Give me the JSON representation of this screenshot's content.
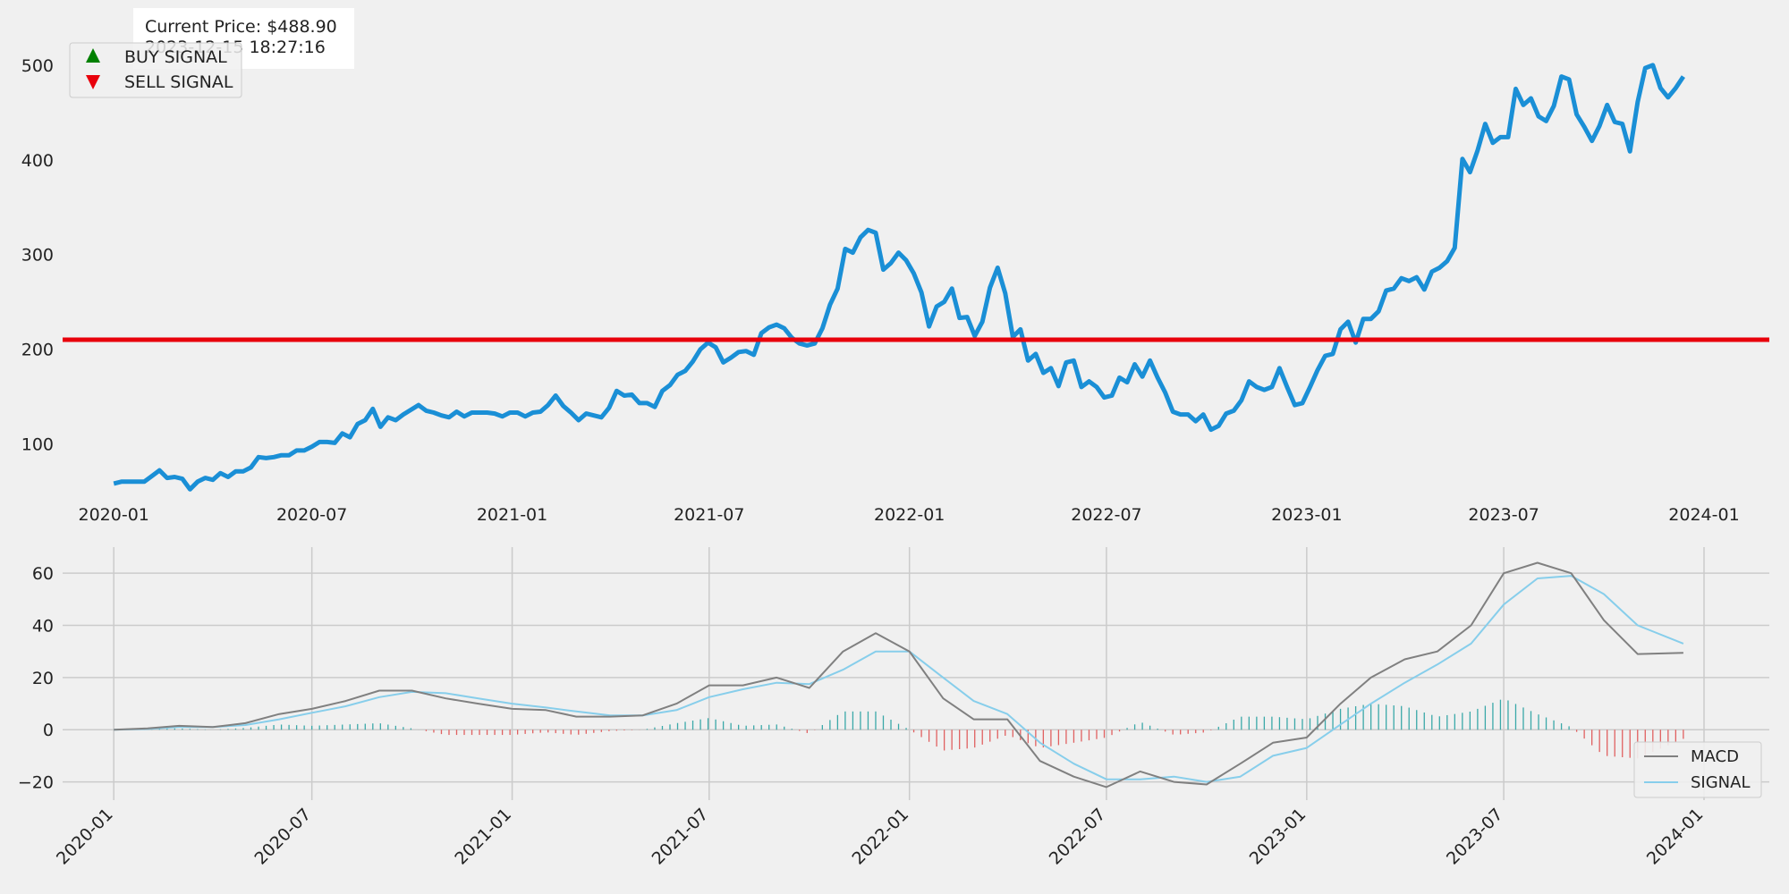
{
  "info_box": {
    "price_text": "Current Price: $488.90",
    "timestamp_text": "2023-12-15 18:27:16"
  },
  "chart_data": [
    {
      "type": "line",
      "panel": "price",
      "series": [
        {
          "name": "",
          "color": "#1a8fd6",
          "x": [
            "2020-01-01",
            "2020-01-08",
            "2020-01-15",
            "2020-01-22",
            "2020-01-29",
            "2020-02-05",
            "2020-02-12",
            "2020-02-19",
            "2020-02-26",
            "2020-03-04",
            "2020-03-11",
            "2020-03-18",
            "2020-03-25",
            "2020-04-01",
            "2020-04-08",
            "2020-04-15",
            "2020-04-22",
            "2020-04-29",
            "2020-05-06",
            "2020-05-13",
            "2020-05-20",
            "2020-05-27",
            "2020-06-03",
            "2020-06-10",
            "2020-06-17",
            "2020-06-24",
            "2020-07-01",
            "2020-07-08",
            "2020-07-15",
            "2020-07-22",
            "2020-07-29",
            "2020-08-05",
            "2020-08-12",
            "2020-08-19",
            "2020-08-26",
            "2020-09-02",
            "2020-09-09",
            "2020-09-16",
            "2020-09-23",
            "2020-09-30",
            "2020-10-07",
            "2020-10-14",
            "2020-10-21",
            "2020-10-28",
            "2020-11-04",
            "2020-11-11",
            "2020-11-18",
            "2020-11-25",
            "2020-12-02",
            "2020-12-09",
            "2020-12-16",
            "2020-12-23",
            "2020-12-30",
            "2021-01-06",
            "2021-01-13",
            "2021-01-20",
            "2021-01-27",
            "2021-02-03",
            "2021-02-10",
            "2021-02-17",
            "2021-02-24",
            "2021-03-03",
            "2021-03-10",
            "2021-03-17",
            "2021-03-24",
            "2021-03-31",
            "2021-04-07",
            "2021-04-14",
            "2021-04-21",
            "2021-04-28",
            "2021-05-05",
            "2021-05-12",
            "2021-05-19",
            "2021-05-26",
            "2021-06-02",
            "2021-06-09",
            "2021-06-16",
            "2021-06-23",
            "2021-06-30",
            "2021-07-07",
            "2021-07-14",
            "2021-07-21",
            "2021-07-28",
            "2021-08-04",
            "2021-08-11",
            "2021-08-18",
            "2021-08-25",
            "2021-09-01",
            "2021-09-08",
            "2021-09-15",
            "2021-09-22",
            "2021-09-29",
            "2021-10-06",
            "2021-10-13",
            "2021-10-20",
            "2021-10-27",
            "2021-11-03",
            "2021-11-10",
            "2021-11-17",
            "2021-11-24",
            "2021-12-01",
            "2021-12-08",
            "2021-12-15",
            "2021-12-22",
            "2021-12-29",
            "2022-01-05",
            "2022-01-12",
            "2022-01-19",
            "2022-01-26",
            "2022-02-02",
            "2022-02-09",
            "2022-02-16",
            "2022-02-23",
            "2022-03-02",
            "2022-03-09",
            "2022-03-16",
            "2022-03-23",
            "2022-03-30",
            "2022-04-06",
            "2022-04-13",
            "2022-04-20",
            "2022-04-27",
            "2022-05-04",
            "2022-05-11",
            "2022-05-18",
            "2022-05-25",
            "2022-06-01",
            "2022-06-08",
            "2022-06-15",
            "2022-06-22",
            "2022-06-29",
            "2022-07-06",
            "2022-07-13",
            "2022-07-20",
            "2022-07-27",
            "2022-08-03",
            "2022-08-10",
            "2022-08-17",
            "2022-08-24",
            "2022-08-31",
            "2022-09-07",
            "2022-09-14",
            "2022-09-21",
            "2022-09-28",
            "2022-10-05",
            "2022-10-12",
            "2022-10-19",
            "2022-10-26",
            "2022-11-02",
            "2022-11-09",
            "2022-11-16",
            "2022-11-23",
            "2022-11-30",
            "2022-12-07",
            "2022-12-14",
            "2022-12-21",
            "2022-12-28",
            "2023-01-04",
            "2023-01-11",
            "2023-01-18",
            "2023-01-25",
            "2023-02-01",
            "2023-02-08",
            "2023-02-15",
            "2023-02-22",
            "2023-03-01",
            "2023-03-08",
            "2023-03-15",
            "2023-03-22",
            "2023-03-29",
            "2023-04-05",
            "2023-04-12",
            "2023-04-19",
            "2023-04-26",
            "2023-05-03",
            "2023-05-10",
            "2023-05-17",
            "2023-05-24",
            "2023-05-31",
            "2023-06-07",
            "2023-06-14",
            "2023-06-21",
            "2023-06-28",
            "2023-07-05",
            "2023-07-12",
            "2023-07-19",
            "2023-07-26",
            "2023-08-02",
            "2023-08-09",
            "2023-08-16",
            "2023-08-23",
            "2023-08-30",
            "2023-09-06",
            "2023-09-13",
            "2023-09-20",
            "2023-09-27",
            "2023-10-04",
            "2023-10-11",
            "2023-10-18",
            "2023-10-25",
            "2023-11-01",
            "2023-11-08",
            "2023-11-15",
            "2023-11-22",
            "2023-11-29",
            "2023-12-06",
            "2023-12-13"
          ],
          "y": [
            58,
            60,
            60,
            60,
            60,
            66,
            72,
            64,
            65,
            63,
            52,
            60,
            64,
            62,
            69,
            65,
            71,
            71,
            75,
            86,
            85,
            86,
            88,
            88,
            93,
            93,
            97,
            102,
            102,
            101,
            111,
            107,
            121,
            125,
            137,
            118,
            128,
            125,
            131,
            136,
            141,
            135,
            133,
            130,
            128,
            134,
            129,
            133,
            133,
            133,
            132,
            129,
            133,
            133,
            129,
            133,
            134,
            141,
            151,
            140,
            133,
            125,
            132,
            130,
            128,
            138,
            156,
            151,
            152,
            143,
            143,
            139,
            156,
            162,
            173,
            177,
            187,
            200,
            207,
            202,
            186,
            191,
            197,
            198,
            194,
            217,
            223,
            226,
            222,
            212,
            206,
            204,
            206,
            222,
            247,
            264,
            306,
            302,
            318,
            326,
            323,
            284,
            291,
            302,
            294,
            280,
            260,
            224,
            245,
            250,
            264,
            233,
            234,
            214,
            229,
            265,
            286,
            259,
            213,
            221,
            188,
            195,
            175,
            180,
            161,
            186,
            188,
            160,
            166,
            160,
            149,
            151,
            170,
            165,
            184,
            171,
            188,
            170,
            154,
            134,
            131,
            131,
            124,
            131,
            115,
            119,
            132,
            135,
            146,
            166,
            160,
            157,
            160,
            180,
            160,
            141,
            143,
            160,
            178,
            193,
            195,
            221,
            229,
            207,
            232,
            232,
            240,
            262,
            264,
            275,
            272,
            276,
            263,
            282,
            286,
            293,
            307,
            401,
            387,
            410,
            438,
            418,
            424,
            424,
            475,
            458,
            465,
            446,
            441,
            457,
            488,
            485,
            448,
            435,
            420,
            436,
            458,
            440,
            438,
            409,
            461,
            497,
            500,
            476,
            466,
            476,
            488
          ]
        }
      ],
      "reference_line": {
        "y": 210,
        "color": "#e8000b"
      },
      "x_ticks": [
        "2020-01",
        "2020-07",
        "2021-01",
        "2021-07",
        "2022-01",
        "2022-07",
        "2023-01",
        "2023-07",
        "2024-01"
      ],
      "y_ticks": [
        100,
        200,
        300,
        400,
        500
      ],
      "xlim": [
        "2019-11-15",
        "2024-03-01"
      ],
      "ylim": [
        40,
        550
      ],
      "legend": {
        "placement": "top-left",
        "entries": [
          {
            "label": "BUY SIGNAL",
            "marker": "triangle-up",
            "color": "#008000"
          },
          {
            "label": "SELL SIGNAL",
            "marker": "triangle-down",
            "color": "#e8000b"
          }
        ]
      },
      "grid": false
    },
    {
      "type": "line",
      "panel": "macd",
      "series": [
        {
          "name": "MACD",
          "color": "#808080",
          "x": [
            "2020-01-01",
            "2020-02-01",
            "2020-03-01",
            "2020-04-01",
            "2020-05-01",
            "2020-06-01",
            "2020-07-01",
            "2020-08-01",
            "2020-09-01",
            "2020-10-01",
            "2020-11-01",
            "2020-12-01",
            "2021-01-01",
            "2021-02-01",
            "2021-03-01",
            "2021-04-01",
            "2021-05-01",
            "2021-06-01",
            "2021-07-01",
            "2021-08-01",
            "2021-09-01",
            "2021-10-01",
            "2021-11-01",
            "2021-12-01",
            "2022-01-01",
            "2022-02-01",
            "2022-03-01",
            "2022-04-01",
            "2022-05-01",
            "2022-06-01",
            "2022-07-01",
            "2022-08-01",
            "2022-09-01",
            "2022-10-01",
            "2022-11-01",
            "2022-12-01",
            "2023-01-01",
            "2023-02-01",
            "2023-03-01",
            "2023-04-01",
            "2023-05-01",
            "2023-06-01",
            "2023-07-01",
            "2023-08-01",
            "2023-09-01",
            "2023-10-01",
            "2023-11-01",
            "2023-12-13"
          ],
          "y": [
            0,
            0.5,
            1.5,
            1,
            2.5,
            6,
            8,
            11,
            15,
            15,
            12,
            10,
            8,
            7.5,
            5,
            5,
            5.5,
            10,
            17,
            17,
            20,
            16,
            30,
            37,
            30,
            12,
            4,
            4,
            -12,
            -18,
            -22,
            -16,
            -20,
            -21,
            -13,
            -5,
            -3,
            10,
            20,
            27,
            30,
            40,
            60,
            64,
            60,
            42,
            29,
            29.5
          ]
        },
        {
          "name": "SIGNAL",
          "color": "#87ceeb",
          "x": [
            "2020-01-01",
            "2020-02-01",
            "2020-03-01",
            "2020-04-01",
            "2020-05-01",
            "2020-06-01",
            "2020-07-01",
            "2020-08-01",
            "2020-09-01",
            "2020-10-01",
            "2020-11-01",
            "2020-12-01",
            "2021-01-01",
            "2021-02-01",
            "2021-03-01",
            "2021-04-01",
            "2021-05-01",
            "2021-06-01",
            "2021-07-01",
            "2021-08-01",
            "2021-09-01",
            "2021-10-01",
            "2021-11-01",
            "2021-12-01",
            "2022-01-01",
            "2022-02-01",
            "2022-03-01",
            "2022-04-01",
            "2022-05-01",
            "2022-06-01",
            "2022-07-01",
            "2022-08-01",
            "2022-09-01",
            "2022-10-01",
            "2022-11-01",
            "2022-12-01",
            "2023-01-01",
            "2023-02-01",
            "2023-03-01",
            "2023-04-01",
            "2023-05-01",
            "2023-06-01",
            "2023-07-01",
            "2023-08-01",
            "2023-09-01",
            "2023-10-01",
            "2023-11-01",
            "2023-12-13"
          ],
          "y": [
            0,
            0.3,
            1,
            1,
            1.8,
            4,
            6.5,
            9,
            12.5,
            14.5,
            14,
            12,
            10,
            8.5,
            7,
            5.5,
            5.5,
            7.5,
            12.5,
            15.5,
            18,
            17.5,
            23,
            30,
            30,
            20,
            11,
            6,
            -5,
            -13,
            -19,
            -19,
            -18,
            -20,
            -18,
            -10,
            -7,
            2,
            10,
            18,
            25,
            33,
            48,
            58,
            59,
            52,
            40,
            33
          ]
        }
      ],
      "histogram": {
        "name": "MACD - SIGNAL",
        "positive_color": "#3aa8a8",
        "negative_color": "#e06060"
      },
      "x_ticks": [
        "2020-01",
        "2020-07",
        "2021-01",
        "2021-07",
        "2022-01",
        "2022-07",
        "2023-01",
        "2023-07",
        "2024-01"
      ],
      "y_ticks": [
        -20,
        0,
        20,
        40,
        60
      ],
      "xlim": [
        "2019-11-15",
        "2024-03-01"
      ],
      "ylim": [
        -27,
        70
      ],
      "legend": {
        "placement": "bottom-right"
      },
      "grid": true
    }
  ]
}
